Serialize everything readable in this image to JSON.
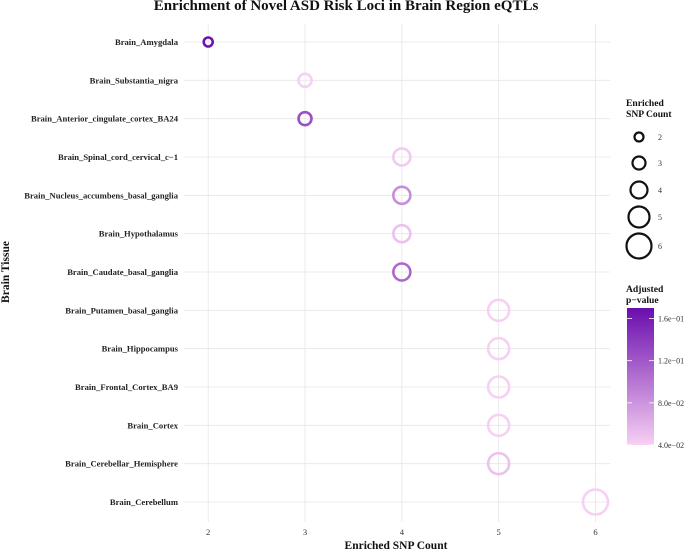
{
  "chart_data": {
    "type": "scatter",
    "title": "Enrichment of Novel ASD Risk Loci in Brain Region eQTLs",
    "xlabel": "Enriched SNP Count",
    "ylabel": "Brain Tissue",
    "xlim": [
      1.75,
      6.15
    ],
    "xticks": [
      2,
      3,
      4,
      5,
      6
    ],
    "grid": true,
    "colors": {
      "low": "#f7d0f3",
      "high": "#6a0dad"
    },
    "points": [
      {
        "tissue": "Brain_Amygdala",
        "count": 2,
        "padj": 0.165
      },
      {
        "tissue": "Brain_Substantia_nigra",
        "count": 3,
        "padj": 0.04
      },
      {
        "tissue": "Brain_Anterior_cingulate_cortex_BA24",
        "count": 3,
        "padj": 0.125
      },
      {
        "tissue": "Brain_Spinal_cord_cervical_c−1",
        "count": 4,
        "padj": 0.045
      },
      {
        "tissue": "Brain_Nucleus_accumbens_basal_ganglia",
        "count": 4,
        "padj": 0.085
      },
      {
        "tissue": "Brain_Hypothalamus",
        "count": 4,
        "padj": 0.05
      },
      {
        "tissue": "Brain_Caudate_basal_ganglia",
        "count": 4,
        "padj": 0.11
      },
      {
        "tissue": "Brain_Putamen_basal_ganglia",
        "count": 5,
        "padj": 0.04
      },
      {
        "tissue": "Brain_Hippocampus",
        "count": 5,
        "padj": 0.04
      },
      {
        "tissue": "Brain_Frontal_Cortex_BA9",
        "count": 5,
        "padj": 0.04
      },
      {
        "tissue": "Brain_Cortex",
        "count": 5,
        "padj": 0.04
      },
      {
        "tissue": "Brain_Cerebellar_Hemisphere",
        "count": 5,
        "padj": 0.05
      },
      {
        "tissue": "Brain_Cerebellum",
        "count": 6,
        "padj": 0.04
      }
    ],
    "legend": {
      "size_title": [
        "Enriched",
        "SNP Count"
      ],
      "size_values": [
        2,
        3,
        4,
        5,
        6
      ],
      "color_title": [
        "Adjusted",
        "p−value"
      ],
      "color_range": [
        0.04,
        0.17
      ],
      "color_ticks": [
        {
          "value": 0.16,
          "label": "1.6e−01"
        },
        {
          "value": 0.12,
          "label": "1.2e−01"
        },
        {
          "value": 0.08,
          "label": "8.0e−02"
        },
        {
          "value": 0.04,
          "label": "4.0e−02"
        }
      ]
    }
  }
}
